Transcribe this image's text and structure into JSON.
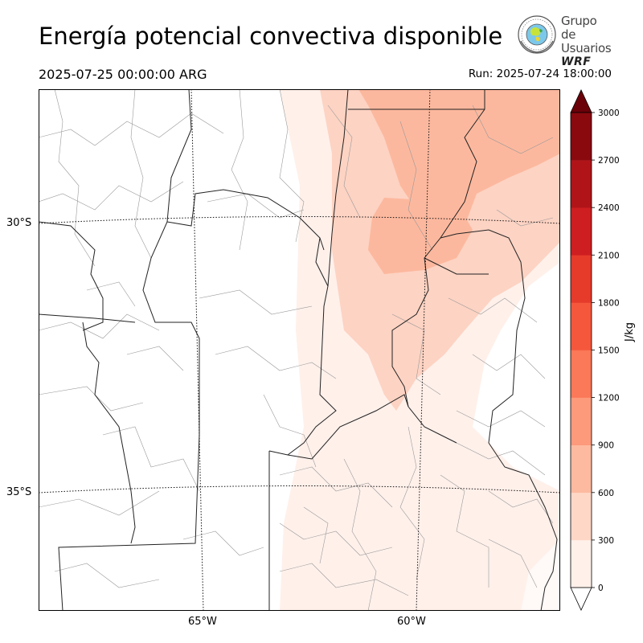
{
  "header": {
    "title": "Energía potencial convectiva disponible",
    "valid_time": "2025-07-25 00:00:00 ARG",
    "run_label": "Run: 2025-07-24 18:00:00"
  },
  "logo": {
    "line1": "Grupo de",
    "line2": "Usuarios",
    "line3": "WRF"
  },
  "map": {
    "lat_labels": [
      "30°S",
      "35°S"
    ],
    "lon_labels": [
      "65°W",
      "60°W"
    ],
    "overlay_features": [
      "province-borders",
      "department-borders",
      "graticule-dotted"
    ],
    "field_colors": [
      "#fff0ea",
      "#fdd3c3",
      "#fcb89e",
      "#f88e6d"
    ]
  },
  "colorbar": {
    "units": "J/kg",
    "ticks": [
      "0",
      "300",
      "600",
      "900",
      "1200",
      "1500",
      "1800",
      "2100",
      "2400",
      "2700",
      "3000"
    ],
    "colors": [
      "#fff0ea",
      "#fed7c7",
      "#fdbaa0",
      "#fc9a7b",
      "#fb7858",
      "#f5573c",
      "#e63a2b",
      "#ce1e21",
      "#b01419",
      "#89090f"
    ],
    "extend_color": "#6b0009"
  }
}
